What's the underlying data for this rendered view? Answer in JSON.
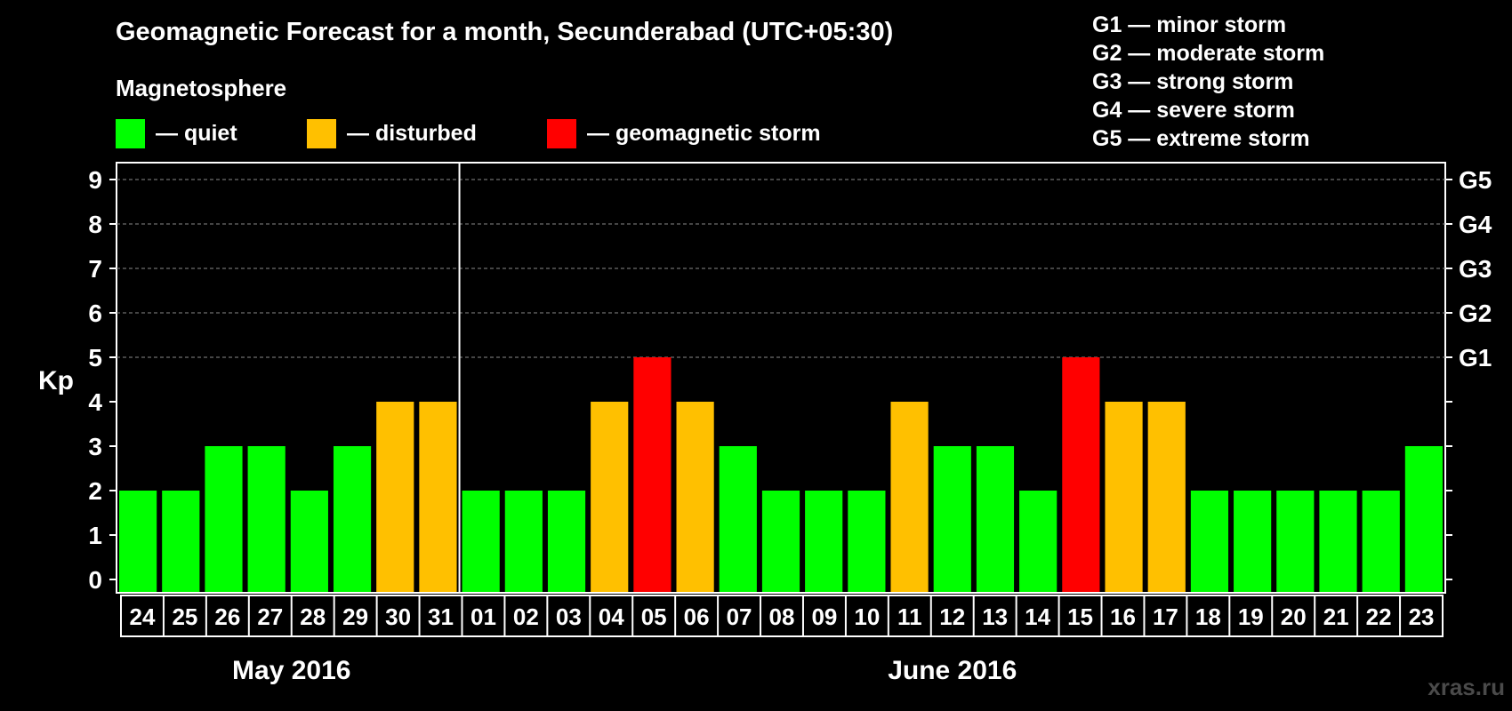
{
  "title": "Geomagnetic Forecast for a month, Secunderabad (UTC+05:30)",
  "section_label": "Magnetosphere",
  "legend": [
    {
      "label": "— quiet",
      "color": "#00ff00"
    },
    {
      "label": "— disturbed",
      "color": "#ffc000"
    },
    {
      "label": "— geomagnetic storm",
      "color": "#ff0000"
    }
  ],
  "g_scale": [
    "G1 — minor storm",
    "G2 — moderate storm",
    "G3 — strong storm",
    "G4 — severe storm",
    "G5 — extreme storm"
  ],
  "watermark": "xras.ru",
  "chart_data": {
    "type": "bar",
    "ylabel": "Kp",
    "ylim": [
      0,
      9
    ],
    "yticks": [
      "0",
      "1",
      "2",
      "3",
      "4",
      "5",
      "6",
      "7",
      "8",
      "9"
    ],
    "right_ticks": [
      {
        "kp": 5,
        "label": "G1"
      },
      {
        "kp": 6,
        "label": "G2"
      },
      {
        "kp": 7,
        "label": "G3"
      },
      {
        "kp": 8,
        "label": "G4"
      },
      {
        "kp": 9,
        "label": "G5"
      }
    ],
    "grid": "dashed horizontal at Kp 5–9",
    "categories": [
      "24",
      "25",
      "26",
      "27",
      "28",
      "29",
      "30",
      "31",
      "01",
      "02",
      "03",
      "04",
      "05",
      "06",
      "07",
      "08",
      "09",
      "10",
      "11",
      "12",
      "13",
      "14",
      "15",
      "16",
      "17",
      "18",
      "19",
      "20",
      "21",
      "22",
      "23"
    ],
    "values": [
      2,
      2,
      3,
      3,
      2,
      3,
      4,
      4,
      2,
      2,
      2,
      4,
      5,
      4,
      3,
      2,
      2,
      2,
      4,
      3,
      3,
      2,
      5,
      4,
      4,
      2,
      2,
      2,
      2,
      2,
      3
    ],
    "months": [
      {
        "label": "May 2016",
        "start": 0,
        "count": 8
      },
      {
        "label": "June 2016",
        "start": 8,
        "count": 23
      }
    ],
    "colors": {
      "quiet": "#00ff00",
      "disturbed": "#ffc000",
      "storm": "#ff0000"
    }
  }
}
